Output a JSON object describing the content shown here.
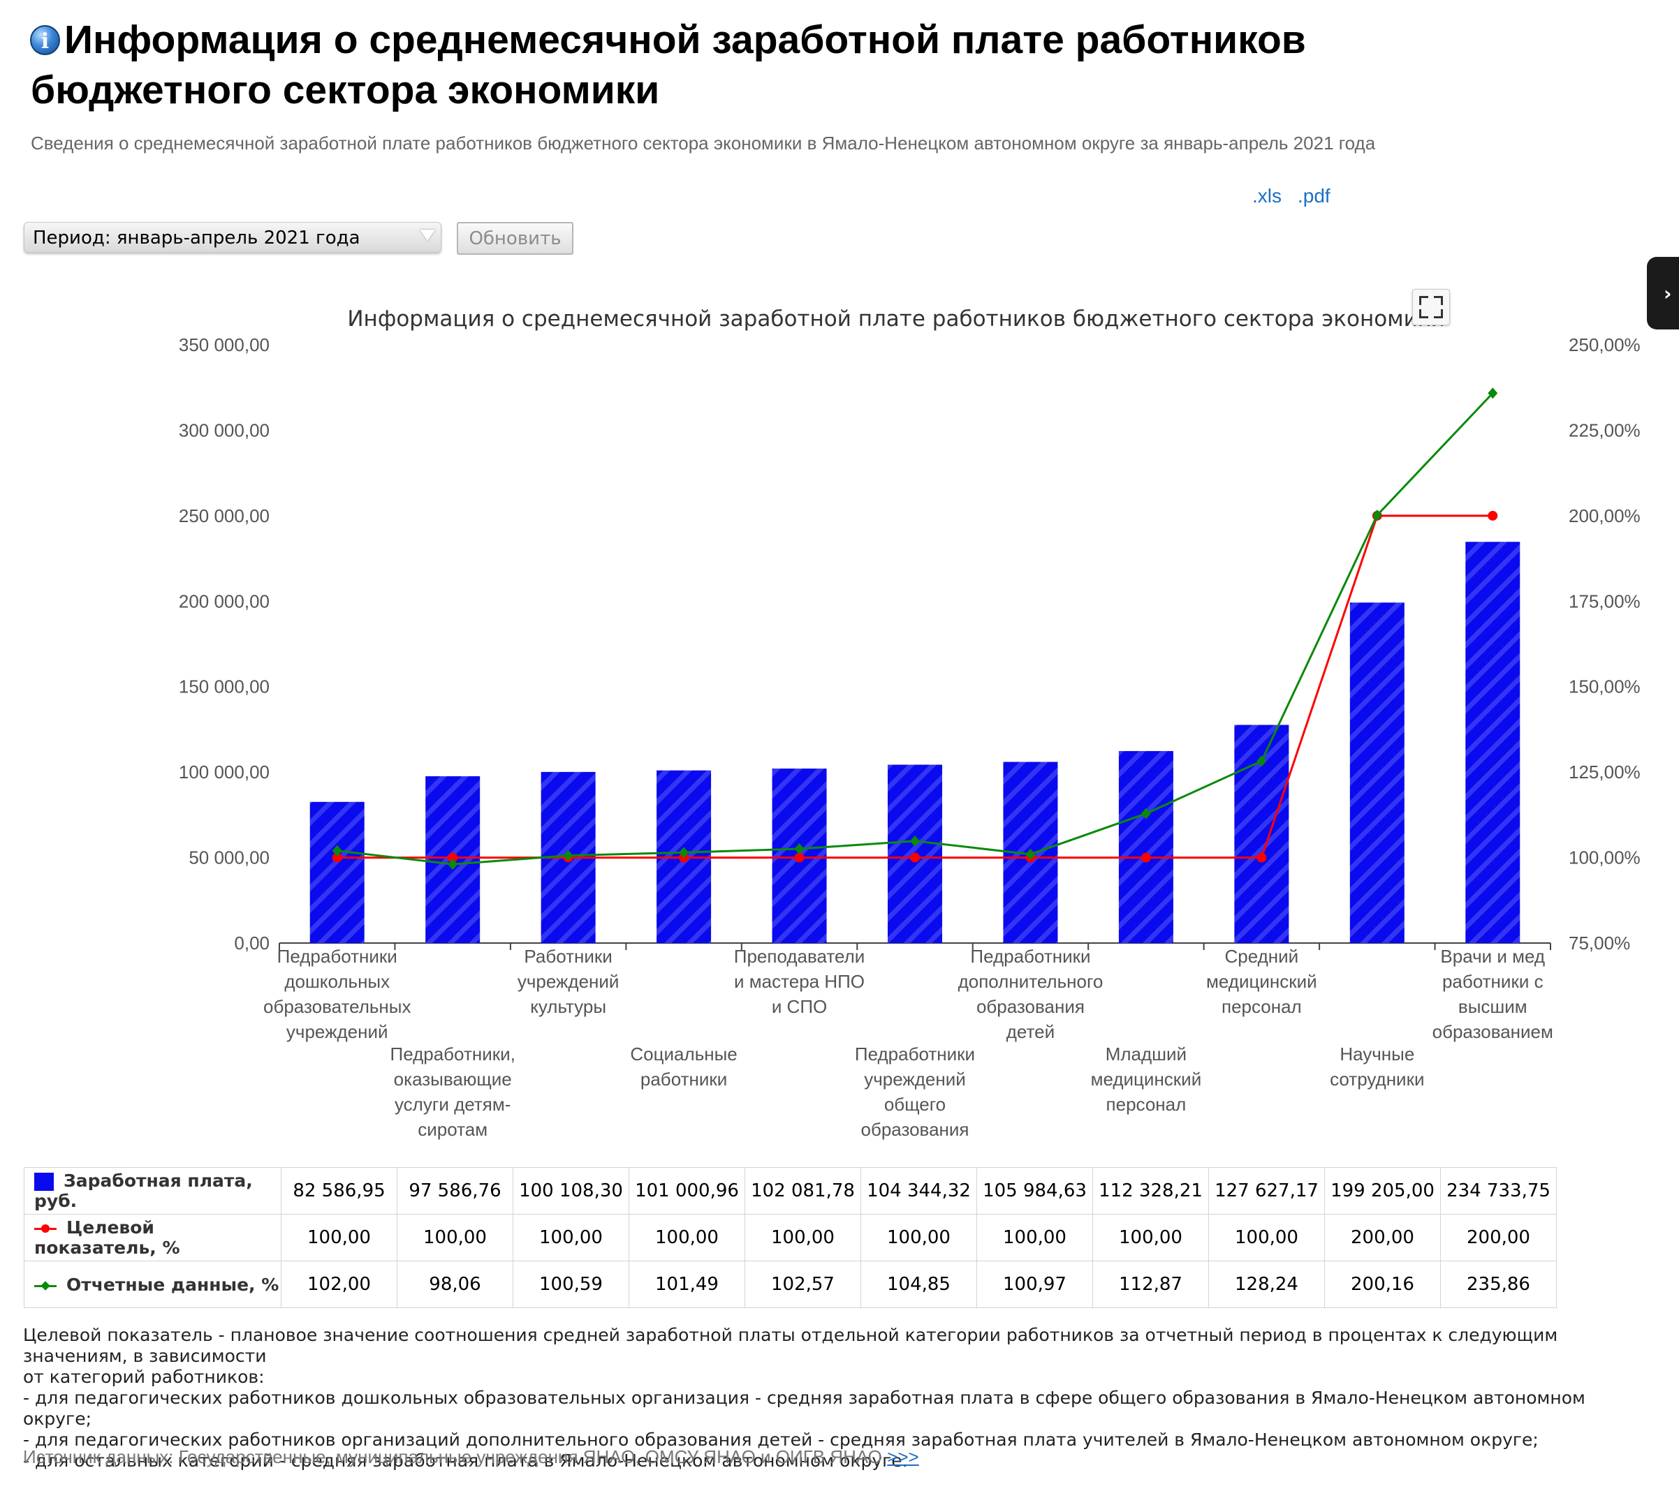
{
  "page": {
    "title_line1": "Информация о среднемесячной заработной плате работников",
    "title_line2": "бюджетного сектора экономики",
    "subtitle": "Сведения о среднемесячной заработной плате работников бюджетного сектора экономики в Ямало-Ненецком автономном округе за январь-апрель 2021 года",
    "info_icon": "info-icon",
    "info_icon_glyph": "i"
  },
  "downloads": {
    "xls": ".xls",
    "pdf": ".pdf"
  },
  "controls": {
    "period_select_value": "Период: январь-апрель 2021 года",
    "refresh_label": "Обновить"
  },
  "chart_data": {
    "type": "bar",
    "title": "Информация о среднемесячной заработной плате работников бюджетного сектора экономики",
    "categories": [
      "Педработники дошкольных образовательных учреждений",
      "Педработники, оказывающие услуги детям-сиротам",
      "Работники учреждений культуры",
      "Социальные работники",
      "Преподаватели и мастера НПО и СПО",
      "Педработники учреждений общего образования",
      "Педработники дополнительного образования детей",
      "Младший медицинский персонал",
      "Средний медицинский персонал",
      "Научные сотрудники",
      "Врачи и мед работники с высшим образованием"
    ],
    "category_label_lines": [
      [
        "Педработники",
        "дошкольных",
        "образовательных",
        "учреждений"
      ],
      [
        "Педработники,",
        "оказывающие",
        "услуги детям-",
        "сиротам"
      ],
      [
        "Работники",
        "учреждений",
        "культуры"
      ],
      [
        "Социальные",
        "работники"
      ],
      [
        "Преподаватели",
        "и мастера НПО",
        "и СПО"
      ],
      [
        "Педработники",
        "учреждений",
        "общего",
        "образования"
      ],
      [
        "Педработники",
        "дополнительного",
        "образования",
        "детей"
      ],
      [
        "Младший",
        "медицинский",
        "персонал"
      ],
      [
        "Средний",
        "медицинский",
        "персонал"
      ],
      [
        "Научные",
        "сотрудники"
      ],
      [
        "Врачи и мед",
        "работники с",
        "высшим",
        "образованием"
      ]
    ],
    "series": [
      {
        "name": "Заработная плата, руб.",
        "type": "bar",
        "axis": "left",
        "color": "#0a0aee",
        "values": [
          82586.95,
          97586.76,
          100108.3,
          101000.96,
          102081.78,
          104344.32,
          105984.63,
          112328.21,
          127627.17,
          199205.0,
          234733.75
        ],
        "labels": [
          "82 586,95",
          "97 586,76",
          "100 108,30",
          "101 000,96",
          "102 081,78",
          "104 344,32",
          "105 984,63",
          "112 328,21",
          "127 627,17",
          "199 205,00",
          "234 733,75"
        ]
      },
      {
        "name": "Целевой показатель, %",
        "type": "line",
        "axis": "right",
        "color": "#ff0000",
        "values": [
          100.0,
          100.0,
          100.0,
          100.0,
          100.0,
          100.0,
          100.0,
          100.0,
          100.0,
          200.0,
          200.0
        ],
        "labels": [
          "100,00",
          "100,00",
          "100,00",
          "100,00",
          "100,00",
          "100,00",
          "100,00",
          "100,00",
          "100,00",
          "200,00",
          "200,00"
        ]
      },
      {
        "name": "Отчетные данные, %",
        "type": "line",
        "axis": "right",
        "color": "#0a8a0a",
        "values": [
          102.0,
          98.06,
          100.59,
          101.49,
          102.57,
          104.85,
          100.97,
          112.87,
          128.24,
          200.16,
          235.86
        ],
        "labels": [
          "102,00",
          "98,06",
          "100,59",
          "101,49",
          "102,57",
          "104,85",
          "100,97",
          "112,87",
          "128,24",
          "200,16",
          "235,86"
        ]
      }
    ],
    "y_left": {
      "ylim": [
        0,
        350000
      ],
      "ticks": [
        0,
        50000,
        100000,
        150000,
        200000,
        250000,
        300000,
        350000
      ],
      "tick_labels": [
        "0,00",
        "50 000,00",
        "100 000,00",
        "150 000,00",
        "200 000,00",
        "250 000,00",
        "300 000,00",
        "350 000,00"
      ]
    },
    "y_right": {
      "ylim": [
        75,
        250
      ],
      "ticks": [
        75,
        100,
        125,
        150,
        175,
        200,
        225,
        250
      ],
      "tick_labels": [
        "75,00%",
        "100,00%",
        "125,00%",
        "150,00%",
        "175,00%",
        "200,00%",
        "225,00%",
        "250,00%"
      ]
    },
    "grid": false,
    "legend": "bottom-table"
  },
  "footnote": {
    "lines": [
      "Целевой показатель - плановое значение соотношения средней заработной платы отдельной категории работников за отчетный период в процентах к следующим значениям, в зависимости",
      "от категорий работников:",
      "- для педагогических работников дошкольных образовательных организация - средняя заработная плата в сфере общего образования в Ямало-Ненецком автономном округе;",
      "- для педагогических работников организаций дополнительного образования детей - средняя заработная плата учителей в Ямало-Ненецком автономном округе;",
      "- для остальных категорий - средняя заработная плата в Ямало-Ненецком автономном округе."
    ]
  },
  "source": {
    "text": "Источник данных: Государственные, муниципальные учреждения ЯНАО, ОМСУ ЯНАО и ОИГВ ЯНАО",
    "link": ">>>"
  }
}
